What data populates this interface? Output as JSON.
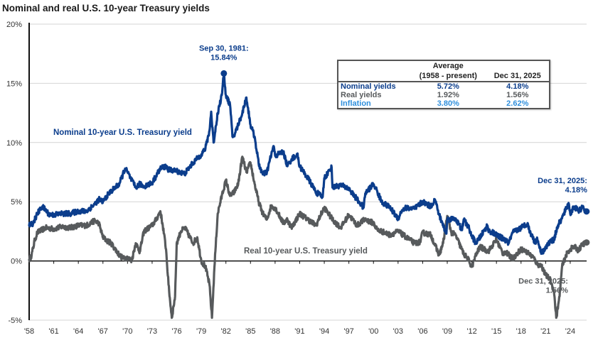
{
  "chart_data": {
    "type": "line",
    "title": "Nominal and real U.S. 10-year Treasury yields",
    "xlabel": "",
    "ylabel": "",
    "ylim": [
      -5,
      20
    ],
    "xlim": [
      1958,
      2026
    ],
    "grid": true,
    "y_ticks": [
      {
        "value": 20,
        "label": "20%"
      },
      {
        "value": 15,
        "label": "15%"
      },
      {
        "value": 10,
        "label": "10%"
      },
      {
        "value": 5,
        "label": "5%"
      },
      {
        "value": 0,
        "label": "0%"
      },
      {
        "value": -5,
        "label": "-5%"
      }
    ],
    "x_ticks": [
      {
        "value": 1958,
        "label": "'58"
      },
      {
        "value": 1961,
        "label": "'61"
      },
      {
        "value": 1964,
        "label": "'64"
      },
      {
        "value": 1967,
        "label": "'67"
      },
      {
        "value": 1970,
        "label": "'70"
      },
      {
        "value": 1973,
        "label": "'73"
      },
      {
        "value": 1976,
        "label": "'76"
      },
      {
        "value": 1979,
        "label": "'79"
      },
      {
        "value": 1982,
        "label": "'82"
      },
      {
        "value": 1985,
        "label": "'85"
      },
      {
        "value": 1988,
        "label": "'88"
      },
      {
        "value": 1991,
        "label": "'91"
      },
      {
        "value": 1994,
        "label": "'94"
      },
      {
        "value": 1997,
        "label": "'97"
      },
      {
        "value": 2000,
        "label": "'00"
      },
      {
        "value": 2003,
        "label": "'03"
      },
      {
        "value": 2006,
        "label": "'06"
      },
      {
        "value": 2009,
        "label": "'09"
      },
      {
        "value": 2012,
        "label": "'12"
      },
      {
        "value": 2015,
        "label": "'15"
      },
      {
        "value": 2018,
        "label": "'18"
      },
      {
        "value": 2021,
        "label": "'21"
      },
      {
        "value": 2024,
        "label": "'24"
      }
    ],
    "series": [
      {
        "name": "Nominal 10-year U.S. Treasury yield",
        "color": "#0b3d8c",
        "x": [
          1958,
          1958.5,
          1959,
          1959.6,
          1960,
          1960.5,
          1961,
          1962,
          1963,
          1964,
          1965,
          1966,
          1966.5,
          1967,
          1967.5,
          1968,
          1969,
          1969.7,
          1970,
          1970.5,
          1971,
          1971.5,
          1972,
          1973,
          1973.5,
          1974,
          1974.7,
          1975,
          1976,
          1976.8,
          1977,
          1978,
          1979,
          1979.5,
          1980,
          1980.2,
          1980.5,
          1981,
          1981.5,
          1981.75,
          1982,
          1982.5,
          1982.8,
          1983,
          1983.5,
          1984,
          1984.5,
          1985,
          1985.5,
          1986,
          1986.5,
          1987,
          1987.8,
          1988,
          1989,
          1989.5,
          1990,
          1990.7,
          1991,
          1992,
          1993,
          1993.8,
          1994,
          1994.9,
          1995,
          1996,
          1997,
          1998,
          1998.8,
          1999,
          2000,
          2000.3,
          2001,
          2002,
          2003,
          2003.5,
          2004,
          2005,
          2006,
          2006.5,
          2007,
          2007.5,
          2008,
          2008.9,
          2009,
          2010,
          2010.8,
          2011,
          2011.5,
          2012,
          2012.5,
          2013,
          2013.9,
          2014,
          2015,
          2016,
          2016.5,
          2017,
          2018,
          2018.8,
          2019,
          2019.7,
          2020,
          2020.5,
          2021,
          2021.5,
          2022,
          2022.5,
          2023,
          2023.8,
          2024,
          2024.5,
          2025,
          2025.5,
          2025.99
        ],
        "y": [
          3.0,
          3.2,
          4.0,
          4.6,
          4.3,
          3.9,
          3.9,
          4.0,
          4.0,
          4.2,
          4.2,
          4.8,
          5.2,
          5.0,
          5.5,
          5.9,
          6.5,
          7.8,
          7.5,
          6.8,
          6.2,
          6.5,
          6.3,
          6.6,
          7.2,
          7.8,
          8.0,
          7.7,
          7.6,
          7.4,
          7.4,
          8.3,
          9.0,
          9.5,
          11.0,
          12.6,
          10.0,
          12.5,
          14.0,
          15.84,
          14.0,
          13.2,
          10.5,
          10.6,
          11.5,
          12.5,
          13.8,
          11.5,
          10.5,
          8.2,
          7.3,
          7.5,
          9.7,
          8.9,
          9.2,
          8.0,
          8.6,
          9.0,
          8.0,
          7.0,
          5.8,
          5.4,
          7.0,
          7.9,
          6.2,
          6.4,
          6.1,
          5.2,
          4.5,
          5.7,
          6.5,
          6.1,
          5.0,
          4.5,
          3.6,
          4.3,
          4.5,
          4.4,
          5.0,
          4.8,
          4.6,
          5.2,
          3.9,
          2.3,
          3.5,
          3.6,
          2.6,
          3.5,
          3.0,
          2.1,
          1.5,
          2.0,
          3.0,
          2.6,
          2.2,
          1.8,
          1.5,
          2.4,
          2.8,
          3.2,
          2.6,
          1.6,
          1.8,
          0.7,
          1.1,
          1.6,
          1.8,
          3.0,
          3.6,
          4.9,
          4.0,
          4.6,
          4.2,
          4.5,
          4.18
        ]
      },
      {
        "name": "Real 10-year U.S. Treasury yield",
        "color": "#575a5c",
        "x": [
          1958,
          1958.3,
          1958.7,
          1959,
          1959.5,
          1960,
          1961,
          1962,
          1963,
          1964,
          1965,
          1966,
          1966.5,
          1967,
          1967.5,
          1968,
          1968.5,
          1969,
          1969.5,
          1970,
          1970.5,
          1971,
          1971.5,
          1972,
          1973,
          1973.5,
          1974,
          1974.3,
          1974.7,
          1975,
          1975.4,
          1975.8,
          1976,
          1976.5,
          1977,
          1978,
          1978.5,
          1979,
          1979.5,
          1980,
          1980.3,
          1980.6,
          1981,
          1981.5,
          1982,
          1982.5,
          1983,
          1983.5,
          1984,
          1984.5,
          1985,
          1985.5,
          1986,
          1986.5,
          1987,
          1987.5,
          1988,
          1989,
          1989.5,
          1990,
          1991,
          1992,
          1993,
          1993.5,
          1994,
          1995,
          1996,
          1997,
          1998,
          1998.5,
          1999,
          2000,
          2000.5,
          2001,
          2002,
          2003,
          2004,
          2005,
          2005.7,
          2006,
          2007,
          2008,
          2008.5,
          2009,
          2009.5,
          2010,
          2011,
          2011.5,
          2012,
          2012.5,
          2013,
          2014,
          2015,
          2015.8,
          2016,
          2017,
          2018,
          2018.8,
          2019,
          2019.5,
          2020,
          2020.5,
          2021,
          2021.5,
          2022,
          2022.3,
          2022.7,
          2023,
          2023.5,
          2024,
          2024.5,
          2025,
          2025.5,
          2025.99
        ],
        "y": [
          0.1,
          0.5,
          1.8,
          2.4,
          2.6,
          2.8,
          2.7,
          2.9,
          2.8,
          3.0,
          3.0,
          3.4,
          3.2,
          2.0,
          1.7,
          1.5,
          1.0,
          0.5,
          0.2,
          0.3,
          0.0,
          1.5,
          0.8,
          2.5,
          3.0,
          3.5,
          4.2,
          3.0,
          1.0,
          -2.0,
          -4.8,
          -3.0,
          1.5,
          2.5,
          2.8,
          1.5,
          2.0,
          0.0,
          -0.5,
          -2.0,
          -4.8,
          -0.5,
          4.0,
          5.5,
          6.8,
          5.5,
          5.8,
          6.5,
          8.8,
          7.5,
          8.3,
          6.5,
          5.0,
          4.0,
          3.5,
          4.6,
          4.5,
          3.2,
          3.5,
          2.8,
          4.0,
          3.5,
          3.0,
          3.8,
          4.5,
          3.5,
          2.8,
          3.9,
          3.0,
          3.3,
          3.5,
          3.2,
          2.6,
          2.5,
          2.2,
          2.5,
          2.0,
          1.5,
          1.6,
          2.4,
          2.2,
          0.5,
          1.5,
          3.8,
          2.4,
          2.2,
          0.6,
          0.2,
          -0.5,
          0.5,
          1.2,
          0.8,
          1.8,
          0.6,
          0.8,
          0.2,
          1.0,
          0.7,
          0.6,
          0.3,
          -0.3,
          -0.4,
          -1.2,
          -1.5,
          -2.5,
          -4.8,
          -3.0,
          -0.5,
          0.5,
          1.0,
          1.2,
          0.9,
          1.4,
          1.56
        ]
      }
    ],
    "annotations": [
      {
        "id": "peak",
        "series": 0,
        "x": 1981.75,
        "y": 15.84,
        "text_line1": "Sep 30, 1981:",
        "text_line2": "15.84%",
        "marker": true
      },
      {
        "id": "nominal-end",
        "series": 0,
        "x": 2025.99,
        "y": 4.18,
        "text_line1": "Dec 31, 2025:",
        "text_line2": "4.18%",
        "marker": true
      },
      {
        "id": "real-end",
        "series": 1,
        "x": 2025.99,
        "y": 1.56,
        "text_line1": "Dec 31, 2025:",
        "text_line2": "1.56%",
        "marker": true
      }
    ],
    "series_labels": {
      "nominal": "Nominal 10-year U.S. Treasury yield",
      "real": "Real 10-year U.S. Treasury yield"
    },
    "legend": "inline labels",
    "table": {
      "header_avg_line1": "Average",
      "header_avg_line2": "(1958 - present)",
      "header_date": "Dec 31, 2025",
      "rows": [
        {
          "label": "Nominal yields",
          "average": "5.72%",
          "current": "4.18%",
          "color": "#0b3d8c"
        },
        {
          "label": "Real yields",
          "average": "1.92%",
          "current": "1.56%",
          "color": "#575a5c"
        },
        {
          "label": "Inflation",
          "average": "3.80%",
          "current": "2.62%",
          "color": "#2f8fdc"
        }
      ]
    }
  }
}
